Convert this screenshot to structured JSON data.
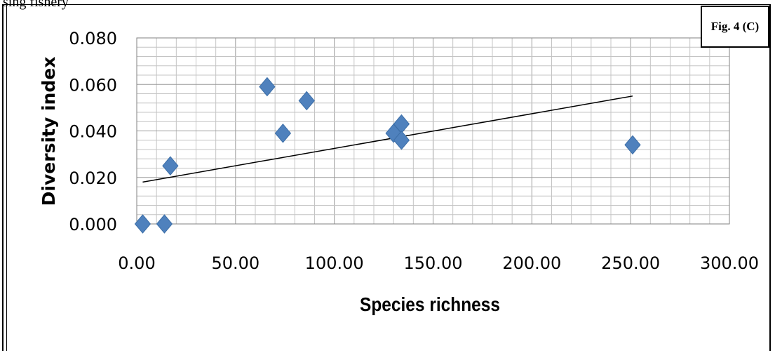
{
  "header_fragment": "sing fishery",
  "figure_label": "Fig. 4 (C)",
  "chart_data": {
    "type": "scatter",
    "title": "",
    "xlabel": "Species richness",
    "ylabel": "Diversity index",
    "xlim": [
      0,
      300
    ],
    "ylim": [
      0,
      0.08
    ],
    "x_ticks": [
      "0.00",
      "50.00",
      "100.00",
      "150.00",
      "200.00",
      "250.00",
      "300.00"
    ],
    "y_ticks": [
      "0.000",
      "0.020",
      "0.040",
      "0.060",
      "0.080"
    ],
    "grid": true,
    "points": [
      {
        "x": 3,
        "y": 0.0
      },
      {
        "x": 14,
        "y": 0.0
      },
      {
        "x": 17,
        "y": 0.025
      },
      {
        "x": 66,
        "y": 0.059
      },
      {
        "x": 74,
        "y": 0.039
      },
      {
        "x": 86,
        "y": 0.053
      },
      {
        "x": 130,
        "y": 0.039
      },
      {
        "x": 134,
        "y": 0.043
      },
      {
        "x": 134,
        "y": 0.036
      },
      {
        "x": 251,
        "y": 0.034
      }
    ],
    "trendline": {
      "x": [
        3,
        251
      ],
      "y": [
        0.018,
        0.055
      ]
    },
    "marker_color": "#4F81BD",
    "trendline_color": "#000000"
  }
}
